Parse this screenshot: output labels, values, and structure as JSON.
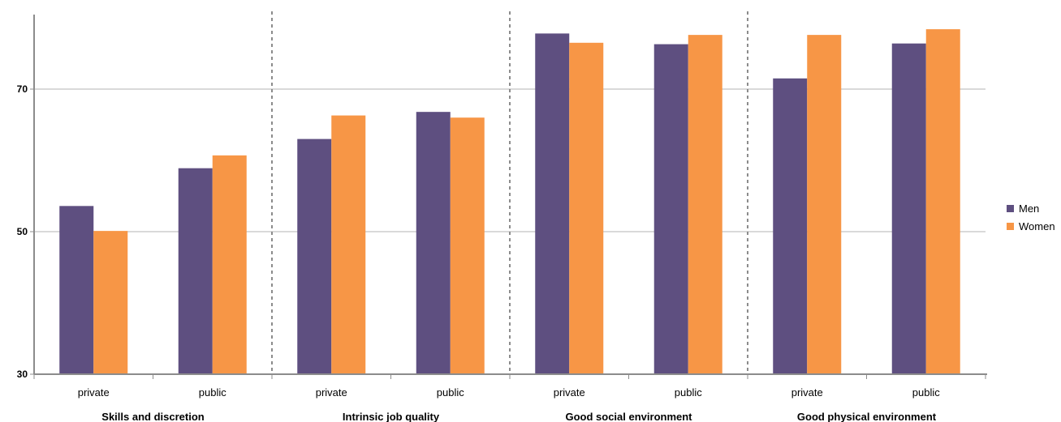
{
  "chart_data": {
    "type": "bar",
    "groups": [
      {
        "label": "Skills and discretion",
        "categories": [
          "private",
          "public"
        ]
      },
      {
        "label": "Intrinsic job quality",
        "categories": [
          "private",
          "public"
        ]
      },
      {
        "label": "Good social environment",
        "categories": [
          "private",
          "public"
        ]
      },
      {
        "label": "Good physical environment",
        "categories": [
          "private",
          "public"
        ]
      }
    ],
    "categories": [
      "private",
      "public",
      "private",
      "public",
      "private",
      "public",
      "private",
      "public"
    ],
    "series": [
      {
        "name": "Men",
        "color": "#5e4f80",
        "values": [
          53.6,
          58.9,
          63.0,
          66.8,
          77.8,
          76.3,
          71.5,
          76.4
        ]
      },
      {
        "name": "Women",
        "color": "#f79646",
        "values": [
          50.1,
          60.7,
          66.3,
          66.0,
          76.5,
          77.6,
          77.6,
          78.4
        ]
      }
    ],
    "ylim": [
      30,
      80
    ],
    "yticks": [
      30,
      50,
      70
    ],
    "grid": true,
    "legend": "right",
    "xlabel": "",
    "ylabel": "",
    "title": ""
  }
}
